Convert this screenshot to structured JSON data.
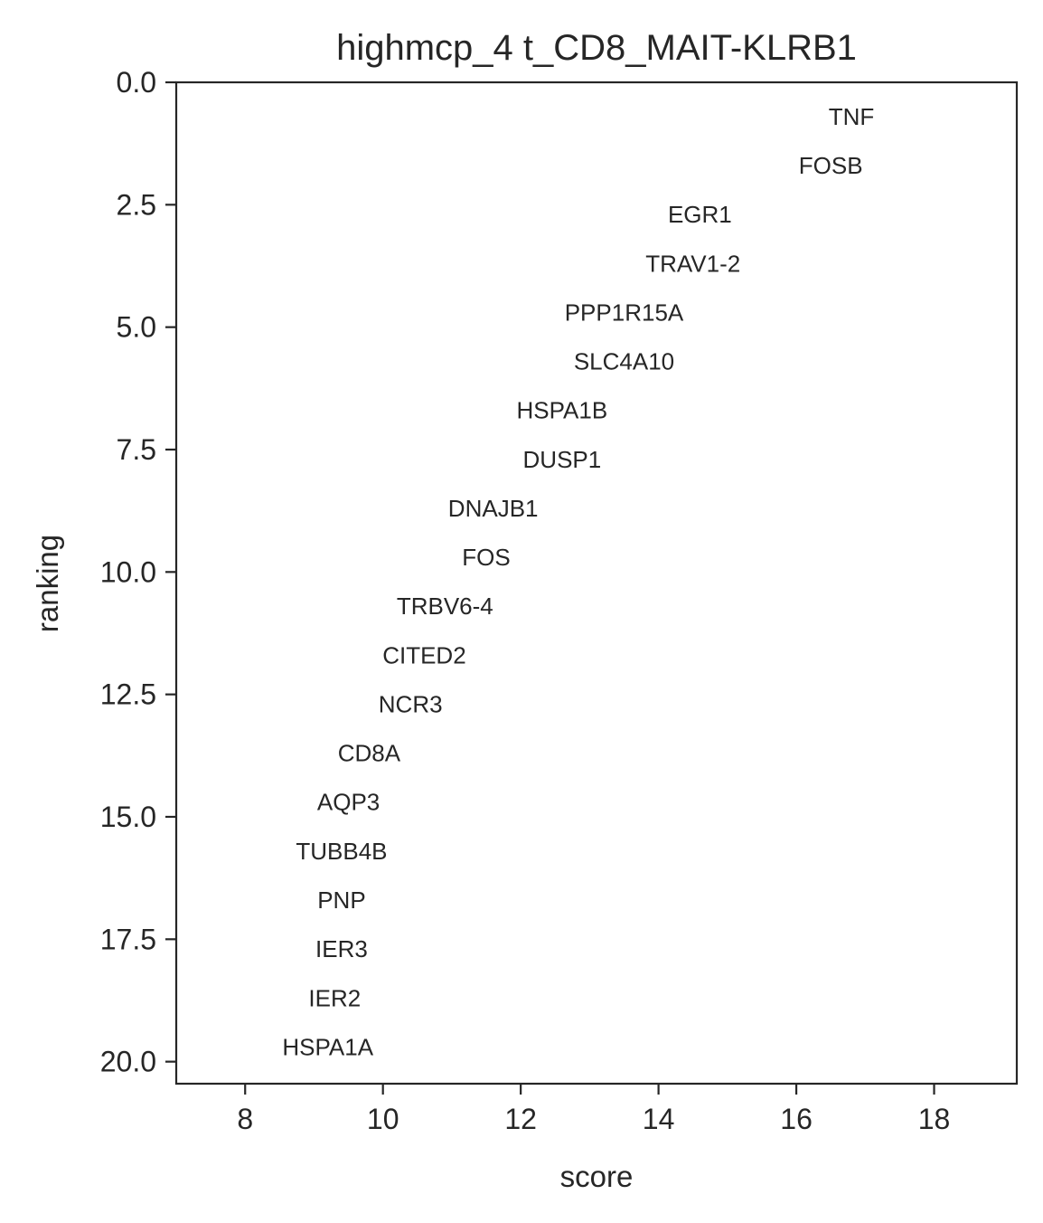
{
  "chart_data": {
    "type": "scatter",
    "title": "highmcp_4 t_CD8_MAIT-KLRB1",
    "xlabel": "score",
    "ylabel": "ranking",
    "xlim": [
      7.0,
      19.2
    ],
    "ylim": [
      20.45,
      0.0
    ],
    "y_inverted": true,
    "grid": false,
    "xticks": [
      8,
      10,
      12,
      14,
      16,
      18
    ],
    "xtick_labels": [
      "8",
      "10",
      "12",
      "14",
      "16",
      "18"
    ],
    "yticks": [
      0.0,
      2.5,
      5.0,
      7.5,
      10.0,
      12.5,
      15.0,
      17.5,
      20.0
    ],
    "ytick_labels": [
      "0.0",
      "2.5",
      "5.0",
      "7.5",
      "10.0",
      "12.5",
      "15.0",
      "17.5",
      "20.0"
    ],
    "points": [
      {
        "label": "TNF",
        "x": 16.8,
        "y": 0.7
      },
      {
        "label": "FOSB",
        "x": 16.5,
        "y": 1.7
      },
      {
        "label": "EGR1",
        "x": 14.6,
        "y": 2.7
      },
      {
        "label": "TRAV1-2",
        "x": 14.5,
        "y": 3.7
      },
      {
        "label": "PPP1R15A",
        "x": 13.5,
        "y": 4.7
      },
      {
        "label": "SLC4A10",
        "x": 13.5,
        "y": 5.7
      },
      {
        "label": "HSPA1B",
        "x": 12.6,
        "y": 6.7
      },
      {
        "label": "DUSP1",
        "x": 12.6,
        "y": 7.7
      },
      {
        "label": "DNAJB1",
        "x": 11.6,
        "y": 8.7
      },
      {
        "label": "FOS",
        "x": 11.5,
        "y": 9.7
      },
      {
        "label": "TRBV6-4",
        "x": 10.9,
        "y": 10.7
      },
      {
        "label": "CITED2",
        "x": 10.6,
        "y": 11.7
      },
      {
        "label": "NCR3",
        "x": 10.4,
        "y": 12.7
      },
      {
        "label": "CD8A",
        "x": 9.8,
        "y": 13.7
      },
      {
        "label": "AQP3",
        "x": 9.5,
        "y": 14.7
      },
      {
        "label": "TUBB4B",
        "x": 9.4,
        "y": 15.7
      },
      {
        "label": "PNP",
        "x": 9.4,
        "y": 16.7
      },
      {
        "label": "IER3",
        "x": 9.4,
        "y": 17.7
      },
      {
        "label": "IER2",
        "x": 9.3,
        "y": 18.7
      },
      {
        "label": "HSPA1A",
        "x": 9.2,
        "y": 19.7
      }
    ]
  }
}
